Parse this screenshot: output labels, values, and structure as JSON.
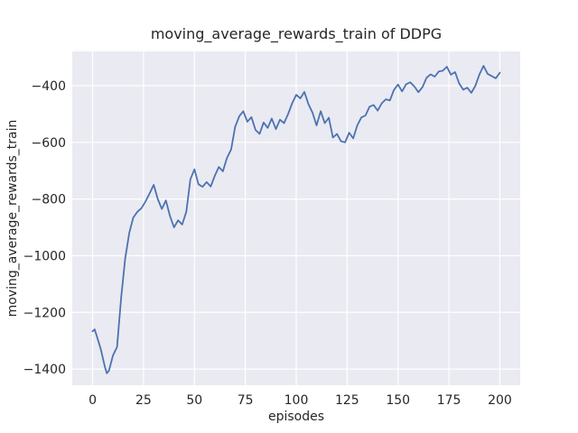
{
  "chart_data": {
    "type": "line",
    "title": "moving_average_rewards_train of DDPG",
    "xlabel": "episodes",
    "ylabel": "moving_average_rewards_train",
    "x_ticks": [
      0,
      25,
      50,
      75,
      100,
      125,
      150,
      175,
      200
    ],
    "x_tick_labels": [
      "0",
      "25",
      "50",
      "75",
      "100",
      "125",
      "150",
      "175",
      "200"
    ],
    "y_ticks": [
      -400,
      -600,
      -800,
      -1000,
      -1200,
      -1400
    ],
    "y_tick_labels": [
      "−400",
      "−600",
      "−800",
      "−1000",
      "−1200",
      "−1400"
    ],
    "xlim": [
      -10,
      210
    ],
    "ylim": [
      -1457,
      -279
    ],
    "grid": true,
    "legend": false,
    "style": "seaborn-darkgrid",
    "colors": {
      "line": "#4c72b0",
      "plot_background": "#eaeaf2",
      "grid": "#ffffff",
      "figure_background": "#ffffff",
      "text": "#262626"
    },
    "series": [
      {
        "name": "moving_average_rewards_train",
        "points": [
          [
            0,
            -1267
          ],
          [
            1,
            -1260
          ],
          [
            2,
            -1283
          ],
          [
            4,
            -1330
          ],
          [
            6,
            -1392
          ],
          [
            7,
            -1415
          ],
          [
            8,
            -1406
          ],
          [
            10,
            -1352
          ],
          [
            12,
            -1322
          ],
          [
            14,
            -1150
          ],
          [
            16,
            -1010
          ],
          [
            18,
            -920
          ],
          [
            20,
            -865
          ],
          [
            22,
            -845
          ],
          [
            24,
            -832
          ],
          [
            26,
            -808
          ],
          [
            28,
            -780
          ],
          [
            30,
            -750
          ],
          [
            32,
            -800
          ],
          [
            34,
            -835
          ],
          [
            36,
            -805
          ],
          [
            38,
            -860
          ],
          [
            40,
            -900
          ],
          [
            42,
            -875
          ],
          [
            44,
            -890
          ],
          [
            46,
            -845
          ],
          [
            48,
            -730
          ],
          [
            50,
            -695
          ],
          [
            52,
            -748
          ],
          [
            54,
            -757
          ],
          [
            56,
            -740
          ],
          [
            58,
            -756
          ],
          [
            60,
            -718
          ],
          [
            62,
            -687
          ],
          [
            64,
            -702
          ],
          [
            66,
            -655
          ],
          [
            68,
            -625
          ],
          [
            70,
            -545
          ],
          [
            72,
            -508
          ],
          [
            74,
            -490
          ],
          [
            76,
            -527
          ],
          [
            78,
            -511
          ],
          [
            80,
            -556
          ],
          [
            82,
            -570
          ],
          [
            84,
            -530
          ],
          [
            86,
            -549
          ],
          [
            88,
            -516
          ],
          [
            90,
            -553
          ],
          [
            92,
            -520
          ],
          [
            94,
            -532
          ],
          [
            96,
            -500
          ],
          [
            98,
            -462
          ],
          [
            100,
            -432
          ],
          [
            102,
            -445
          ],
          [
            104,
            -422
          ],
          [
            106,
            -465
          ],
          [
            108,
            -495
          ],
          [
            110,
            -540
          ],
          [
            112,
            -490
          ],
          [
            114,
            -532
          ],
          [
            116,
            -513
          ],
          [
            118,
            -583
          ],
          [
            120,
            -570
          ],
          [
            122,
            -596
          ],
          [
            124,
            -600
          ],
          [
            126,
            -566
          ],
          [
            128,
            -586
          ],
          [
            130,
            -540
          ],
          [
            132,
            -512
          ],
          [
            134,
            -505
          ],
          [
            136,
            -474
          ],
          [
            138,
            -468
          ],
          [
            140,
            -488
          ],
          [
            142,
            -462
          ],
          [
            144,
            -448
          ],
          [
            146,
            -452
          ],
          [
            148,
            -415
          ],
          [
            150,
            -396
          ],
          [
            152,
            -420
          ],
          [
            154,
            -395
          ],
          [
            156,
            -388
          ],
          [
            158,
            -403
          ],
          [
            160,
            -423
          ],
          [
            162,
            -405
          ],
          [
            164,
            -372
          ],
          [
            166,
            -360
          ],
          [
            168,
            -368
          ],
          [
            170,
            -350
          ],
          [
            172,
            -347
          ],
          [
            174,
            -333
          ],
          [
            176,
            -361
          ],
          [
            178,
            -352
          ],
          [
            180,
            -392
          ],
          [
            182,
            -414
          ],
          [
            184,
            -407
          ],
          [
            186,
            -425
          ],
          [
            188,
            -400
          ],
          [
            190,
            -360
          ],
          [
            192,
            -330
          ],
          [
            194,
            -358
          ],
          [
            196,
            -366
          ],
          [
            198,
            -374
          ],
          [
            200,
            -354
          ]
        ]
      }
    ]
  }
}
